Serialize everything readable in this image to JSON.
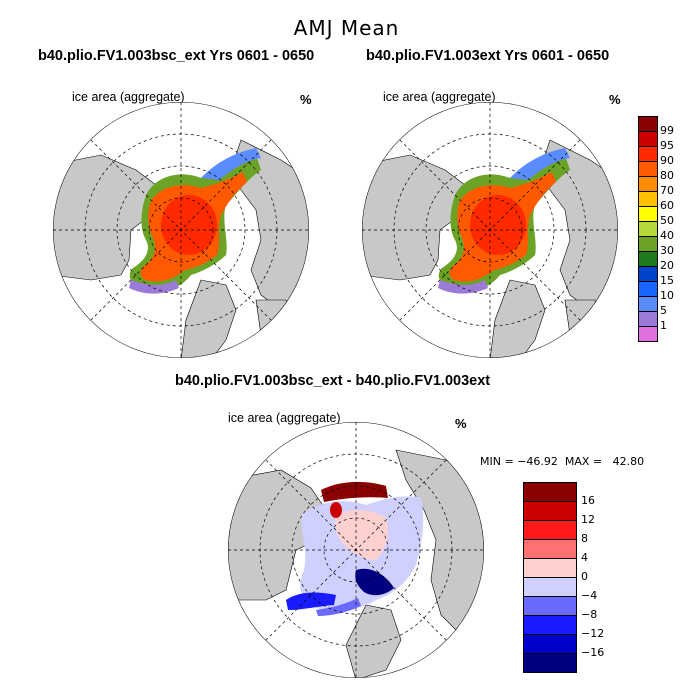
{
  "figure": {
    "title": "AMJ Mean"
  },
  "panels": [
    {
      "id": "left",
      "title": "b40.plio.FV1.003bsc_ext  Yrs 0601 - 0650",
      "field": "ice area  (aggregate)",
      "unit": "%"
    },
    {
      "id": "right",
      "title": "b40.plio.FV1.003ext  Yrs 0601 - 0650",
      "field": "ice area  (aggregate)",
      "unit": "%"
    },
    {
      "id": "diff",
      "title": "b40.plio.FV1.003bsc_ext - b40.plio.FV1.003ext",
      "field": "ice area  (aggregate)",
      "unit": "%",
      "min_max": "MIN = −46.92  MAX =   42.80"
    }
  ],
  "colorbar_abs": {
    "labels": [
      "99",
      "95",
      "90",
      "80",
      "70",
      "60",
      "50",
      "40",
      "30",
      "20",
      "15",
      "10",
      "5",
      "1"
    ],
    "colors": [
      "#8b0000",
      "#cc0000",
      "#ff2a00",
      "#ff5a00",
      "#ff8c00",
      "#ffc000",
      "#ffff00",
      "#b5d83a",
      "#6aa325",
      "#1f7a1f",
      "#0044cc",
      "#1a66ff",
      "#5a8cff",
      "#9c7ad8",
      "#e070e0"
    ]
  },
  "colorbar_diff": {
    "labels": [
      "16",
      "12",
      "8",
      "4",
      "0",
      "−4",
      "−8",
      "−12",
      "−16"
    ],
    "colors": [
      "#8b0000",
      "#cc0000",
      "#ff1a1a",
      "#ff7070",
      "#ffd0d0",
      "#d0d0ff",
      "#6a6aff",
      "#1a1aff",
      "#0000cc",
      "#000080"
    ]
  }
}
